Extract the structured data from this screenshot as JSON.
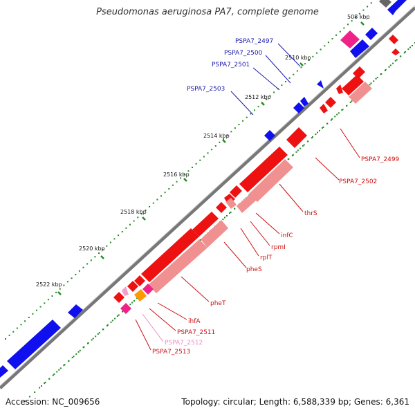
{
  "title": "Pseudomonas aeruginosa PA7, complete genome",
  "footer": {
    "accession": "Accession: NC_009656",
    "stats": "Topology: circular; Length: 6,588,339 bp; Genes: 6,361"
  },
  "ticks": [
    {
      "label": "508 kbp"
    },
    {
      "label": "2510 kbp"
    },
    {
      "label": "2512 kbp"
    },
    {
      "label": "2514 kbp"
    },
    {
      "label": "2516 kbp"
    },
    {
      "label": "2518 kbp"
    },
    {
      "label": "2520 kbp"
    },
    {
      "label": "2522 kbp"
    }
  ],
  "colors": {
    "forward": "#1010ee",
    "cds": "#ee1111",
    "cds_light": "#f09090",
    "rna": "#ee2288",
    "pink_light": "#f2a0cc",
    "orange": "#ff9900",
    "backbone": "#777777",
    "dots": "#228822"
  },
  "labels": [
    {
      "text": "PSPA7_2497",
      "color": "#1a1aaa"
    },
    {
      "text": "PSPA7_2500",
      "color": "#1a1aaa"
    },
    {
      "text": "PSPA7_2501",
      "color": "#1a1aaa"
    },
    {
      "text": "PSPA7_2503",
      "color": "#1a1aaa"
    },
    {
      "text": "PSPA7_2499",
      "color": "#cc1111"
    },
    {
      "text": "PSPA7_2502",
      "color": "#cc1111"
    },
    {
      "text": "thrS",
      "color": "#cc1111"
    },
    {
      "text": "infC",
      "color": "#cc1111"
    },
    {
      "text": "rpmI",
      "color": "#cc1111"
    },
    {
      "text": "rplT",
      "color": "#cc1111"
    },
    {
      "text": "pheS",
      "color": "#cc1111"
    },
    {
      "text": "pheT",
      "color": "#cc1111"
    },
    {
      "text": "ihfA",
      "color": "#cc1111"
    },
    {
      "text": "PSPA7_2511",
      "color": "#cc1111"
    },
    {
      "text": "PSPA7_2512",
      "color": "#f08cc4"
    },
    {
      "text": "PSPA7_2513",
      "color": "#cc1111"
    }
  ]
}
